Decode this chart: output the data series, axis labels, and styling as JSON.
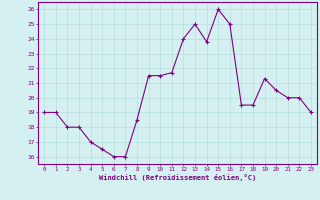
{
  "x": [
    0,
    1,
    2,
    3,
    4,
    5,
    6,
    7,
    8,
    9,
    10,
    11,
    12,
    13,
    14,
    15,
    16,
    17,
    18,
    19,
    20,
    21,
    22,
    23
  ],
  "y": [
    19,
    19,
    18,
    18,
    17,
    16.5,
    16,
    16,
    18.5,
    21.5,
    21.5,
    21.7,
    24,
    25,
    23.8,
    26,
    25,
    19.5,
    19.5,
    21.3,
    20.5,
    20,
    20,
    19
  ],
  "xlabel": "Windchill (Refroidissement éolien,°C)",
  "ylim": [
    15.5,
    26.5
  ],
  "xlim": [
    -0.5,
    23.5
  ],
  "yticks": [
    16,
    17,
    18,
    19,
    20,
    21,
    22,
    23,
    24,
    25,
    26
  ],
  "xticks": [
    0,
    1,
    2,
    3,
    4,
    5,
    6,
    7,
    8,
    9,
    10,
    11,
    12,
    13,
    14,
    15,
    16,
    17,
    18,
    19,
    20,
    21,
    22,
    23
  ],
  "line_color": "#800080",
  "marker": "+",
  "bg_color": "#d4f0f0",
  "grid_color": "#b8dede",
  "axis_color": "#800080",
  "tick_color": "#800080",
  "xlabel_color": "#800080"
}
